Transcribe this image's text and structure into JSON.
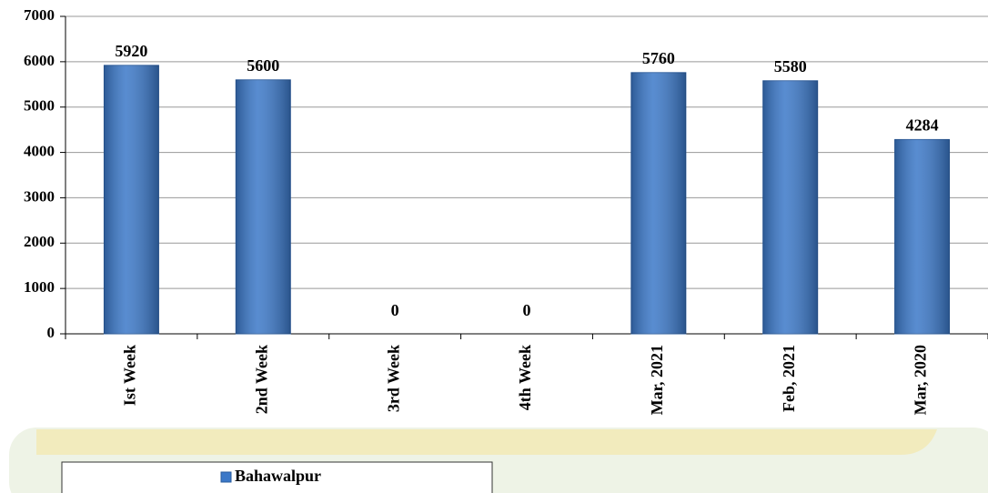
{
  "chart_data": {
    "type": "bar",
    "categories": [
      "Ist Week",
      "2nd Week",
      "3rd Week",
      "4th Week",
      "Mar, 2021",
      "Feb, 2021",
      "Mar, 2020"
    ],
    "series": [
      {
        "name": "Bahawalpur",
        "color": "#3b78c8",
        "values": [
          5920,
          5600,
          0,
          0,
          5760,
          5580,
          4284
        ]
      }
    ],
    "ylim": [
      0,
      7000
    ],
    "yticks": [
      0,
      1000,
      2000,
      3000,
      4000,
      5000,
      6000,
      7000
    ],
    "grid": true,
    "legend": "bottom"
  }
}
